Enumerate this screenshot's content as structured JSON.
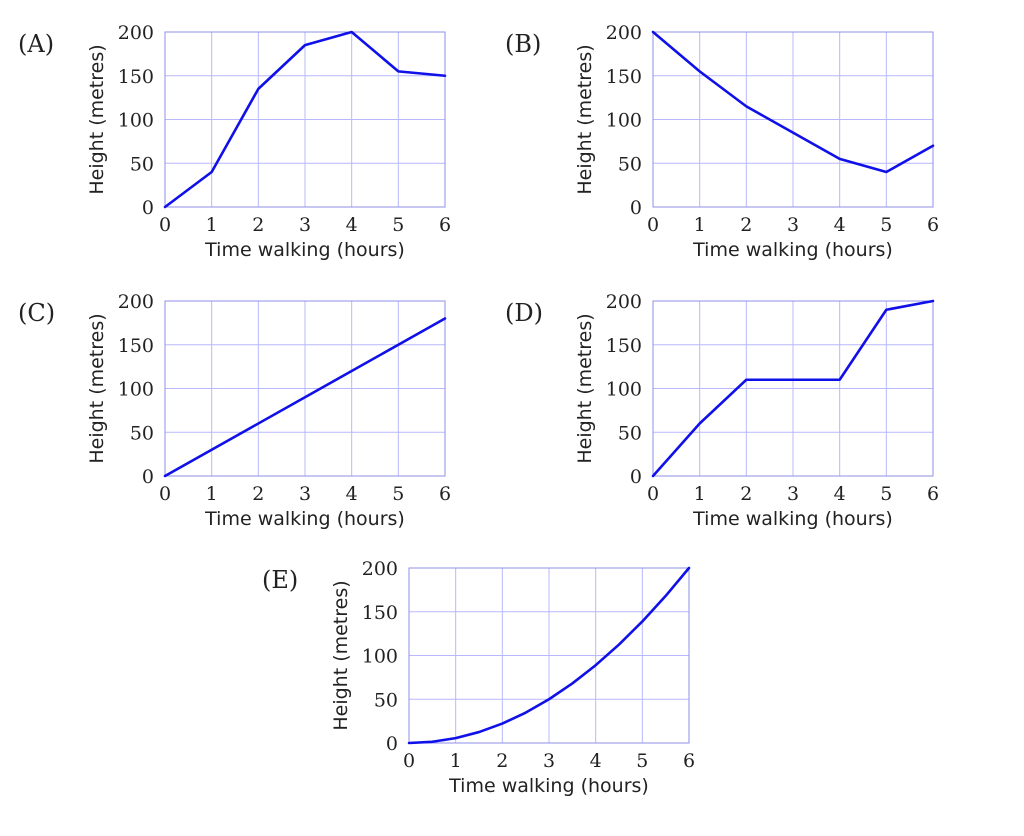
{
  "chart_data": [
    {
      "type": "line",
      "panel_label": "(A)",
      "xlabel": "Time walking (hours)",
      "ylabel": "Height (metres)",
      "xlim": [
        0,
        6
      ],
      "ylim": [
        0,
        200
      ],
      "x_ticks": [
        0,
        1,
        2,
        3,
        4,
        5,
        6
      ],
      "y_ticks": [
        0,
        50,
        100,
        150,
        200
      ],
      "grid": true,
      "line_color": "#1010e8",
      "grid_color": "#b8b8ff",
      "x": [
        0,
        1,
        2,
        3,
        4,
        5,
        6
      ],
      "y": [
        0,
        40,
        135,
        185,
        200,
        155,
        150
      ]
    },
    {
      "type": "line",
      "panel_label": "(B)",
      "xlabel": "Time walking (hours)",
      "ylabel": "Height (metres)",
      "xlim": [
        0,
        6
      ],
      "ylim": [
        0,
        200
      ],
      "x_ticks": [
        0,
        1,
        2,
        3,
        4,
        5,
        6
      ],
      "y_ticks": [
        0,
        50,
        100,
        150,
        200
      ],
      "grid": true,
      "line_color": "#1010e8",
      "grid_color": "#b8b8ff",
      "x": [
        0,
        1,
        2,
        3,
        4,
        5,
        6
      ],
      "y": [
        200,
        155,
        115,
        85,
        55,
        40,
        70
      ]
    },
    {
      "type": "line",
      "panel_label": "(C)",
      "xlabel": "Time walking (hours)",
      "ylabel": "Height (metres)",
      "xlim": [
        0,
        6
      ],
      "ylim": [
        0,
        200
      ],
      "x_ticks": [
        0,
        1,
        2,
        3,
        4,
        5,
        6
      ],
      "y_ticks": [
        0,
        50,
        100,
        150,
        200
      ],
      "grid": true,
      "line_color": "#1010e8",
      "grid_color": "#b8b8ff",
      "x": [
        0,
        6
      ],
      "y": [
        0,
        180
      ]
    },
    {
      "type": "line",
      "panel_label": "(D)",
      "xlabel": "Time walking (hours)",
      "ylabel": "Height (metres)",
      "xlim": [
        0,
        6
      ],
      "ylim": [
        0,
        200
      ],
      "x_ticks": [
        0,
        1,
        2,
        3,
        4,
        5,
        6
      ],
      "y_ticks": [
        0,
        50,
        100,
        150,
        200
      ],
      "grid": true,
      "line_color": "#1010e8",
      "grid_color": "#b8b8ff",
      "x": [
        0,
        1,
        2,
        3,
        4,
        5,
        6
      ],
      "y": [
        0,
        60,
        110,
        110,
        110,
        190,
        200
      ]
    },
    {
      "type": "line",
      "panel_label": "(E)",
      "xlabel": "Time walking (hours)",
      "ylabel": "Height (metres)",
      "xlim": [
        0,
        6
      ],
      "ylim": [
        0,
        200
      ],
      "x_ticks": [
        0,
        1,
        2,
        3,
        4,
        5,
        6
      ],
      "y_ticks": [
        0,
        50,
        100,
        150,
        200
      ],
      "grid": true,
      "line_color": "#1010e8",
      "grid_color": "#b8b8ff",
      "x": [
        0,
        0.5,
        1,
        1.5,
        2,
        2.5,
        3,
        3.5,
        4,
        4.5,
        5,
        5.5,
        6
      ],
      "y": [
        0,
        1.4,
        5.6,
        12.5,
        22.2,
        34.7,
        50,
        68.1,
        88.9,
        112.5,
        138.9,
        168.1,
        200
      ]
    }
  ]
}
